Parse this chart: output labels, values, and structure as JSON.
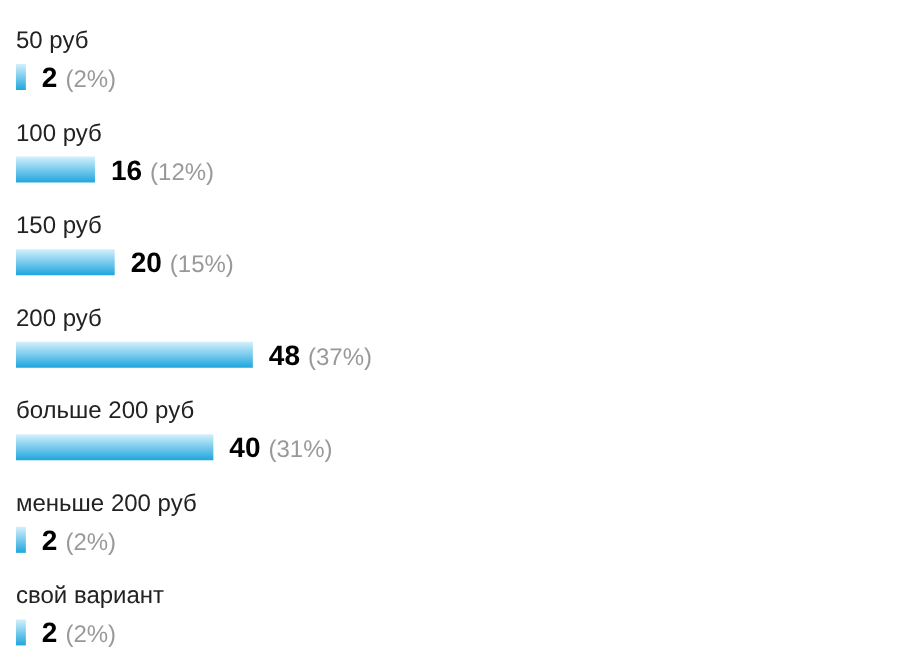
{
  "chart_data": {
    "type": "bar",
    "orientation": "horizontal",
    "categories": [
      "50 руб",
      "100 руб",
      "150 руб",
      "200 руб",
      "больше 200 руб",
      "меньше 200 руб",
      "свой вариант"
    ],
    "values": [
      2,
      16,
      20,
      48,
      40,
      2,
      2
    ],
    "value_labels": [
      "2 (2%)",
      "16 (12%)",
      "20 (15%)",
      "48 (37%)",
      "40 (31%)",
      "2 (2%)",
      "2 (2%)"
    ],
    "color": "#1ea6de",
    "grid": false,
    "legend": false
  }
}
